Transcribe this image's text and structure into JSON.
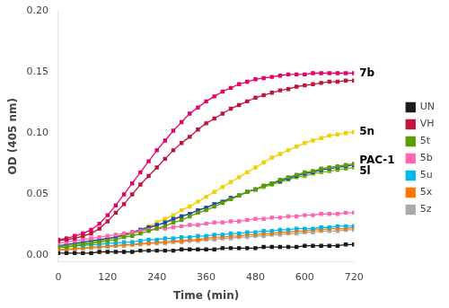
{
  "chart_data": {
    "type": "line",
    "xlabel": "Time (min)",
    "ylabel": "OD (405 nm)",
    "x": [
      0,
      20,
      40,
      60,
      80,
      100,
      120,
      140,
      160,
      180,
      200,
      220,
      240,
      260,
      280,
      300,
      320,
      340,
      360,
      380,
      400,
      420,
      440,
      460,
      480,
      500,
      520,
      540,
      560,
      580,
      600,
      620,
      640,
      660,
      680,
      700,
      720
    ],
    "series": [
      {
        "name": "UN",
        "color": "#1a1a1a",
        "values": [
          0.002,
          0.002,
          0.002,
          0.002,
          0.002,
          0.003,
          0.003,
          0.003,
          0.003,
          0.003,
          0.004,
          0.004,
          0.004,
          0.004,
          0.004,
          0.005,
          0.005,
          0.005,
          0.005,
          0.005,
          0.006,
          0.006,
          0.006,
          0.006,
          0.006,
          0.007,
          0.007,
          0.007,
          0.007,
          0.007,
          0.008,
          0.008,
          0.008,
          0.008,
          0.008,
          0.009,
          0.009
        ]
      },
      {
        "name": "VH",
        "color": "#c0143c",
        "values": [
          0.012,
          0.013,
          0.014,
          0.016,
          0.018,
          0.022,
          0.028,
          0.035,
          0.042,
          0.05,
          0.058,
          0.065,
          0.072,
          0.079,
          0.086,
          0.092,
          0.097,
          0.103,
          0.108,
          0.112,
          0.116,
          0.12,
          0.123,
          0.126,
          0.129,
          0.131,
          0.133,
          0.135,
          0.136,
          0.138,
          0.139,
          0.14,
          0.141,
          0.142,
          0.142,
          0.143,
          0.143
        ]
      },
      {
        "name": "5t",
        "color": "#5a9e00",
        "values": [
          0.007,
          0.007,
          0.008,
          0.009,
          0.01,
          0.011,
          0.012,
          0.013,
          0.015,
          0.016,
          0.018,
          0.02,
          0.022,
          0.024,
          0.027,
          0.029,
          0.032,
          0.035,
          0.037,
          0.04,
          0.043,
          0.046,
          0.049,
          0.052,
          0.054,
          0.057,
          0.059,
          0.062,
          0.064,
          0.066,
          0.068,
          0.069,
          0.071,
          0.072,
          0.073,
          0.074,
          0.075
        ]
      },
      {
        "name": "5b",
        "color": "#ff66b2",
        "values": [
          0.01,
          0.011,
          0.012,
          0.013,
          0.014,
          0.015,
          0.016,
          0.017,
          0.018,
          0.019,
          0.02,
          0.021,
          0.022,
          0.022,
          0.023,
          0.024,
          0.025,
          0.025,
          0.026,
          0.027,
          0.027,
          0.028,
          0.028,
          0.029,
          0.03,
          0.03,
          0.031,
          0.031,
          0.032,
          0.032,
          0.033,
          0.033,
          0.034,
          0.034,
          0.034,
          0.035,
          0.035
        ]
      },
      {
        "name": "5u",
        "color": "#00b7eb",
        "values": [
          0.007,
          0.007,
          0.008,
          0.008,
          0.009,
          0.009,
          0.01,
          0.01,
          0.011,
          0.011,
          0.012,
          0.013,
          0.013,
          0.014,
          0.014,
          0.015,
          0.015,
          0.016,
          0.016,
          0.017,
          0.017,
          0.018,
          0.018,
          0.019,
          0.019,
          0.02,
          0.02,
          0.021,
          0.021,
          0.022,
          0.022,
          0.022,
          0.023,
          0.023,
          0.024,
          0.024,
          0.024
        ]
      },
      {
        "name": "5x",
        "color": "#ff7700",
        "values": [
          0.005,
          0.005,
          0.006,
          0.006,
          0.007,
          0.007,
          0.008,
          0.008,
          0.009,
          0.009,
          0.01,
          0.01,
          0.011,
          0.011,
          0.012,
          0.012,
          0.013,
          0.013,
          0.014,
          0.015,
          0.015,
          0.016,
          0.016,
          0.017,
          0.017,
          0.018,
          0.018,
          0.019,
          0.019,
          0.02,
          0.02,
          0.021,
          0.021,
          0.022,
          0.022,
          0.022,
          0.023
        ]
      },
      {
        "name": "5z",
        "color": "#aaaaaa",
        "values": [
          0.005,
          0.005,
          0.005,
          0.006,
          0.006,
          0.007,
          0.007,
          0.008,
          0.008,
          0.009,
          0.009,
          0.01,
          0.01,
          0.01,
          0.011,
          0.011,
          0.012,
          0.012,
          0.013,
          0.013,
          0.014,
          0.014,
          0.015,
          0.015,
          0.016,
          0.016,
          0.017,
          0.017,
          0.018,
          0.018,
          0.019,
          0.019,
          0.02,
          0.02,
          0.02,
          0.021,
          0.021
        ]
      },
      {
        "name": "PAC-1",
        "color": "#2244bb",
        "values": [
          0.008,
          0.009,
          0.01,
          0.011,
          0.012,
          0.013,
          0.014,
          0.015,
          0.017,
          0.019,
          0.021,
          0.023,
          0.025,
          0.027,
          0.03,
          0.032,
          0.034,
          0.037,
          0.039,
          0.042,
          0.044,
          0.047,
          0.049,
          0.052,
          0.054,
          0.057,
          0.059,
          0.061,
          0.063,
          0.065,
          0.067,
          0.068,
          0.07,
          0.071,
          0.072,
          0.073,
          0.074
        ]
      },
      {
        "name": "5n",
        "color": "#f0d000",
        "values": [
          0.007,
          0.007,
          0.008,
          0.009,
          0.01,
          0.011,
          0.013,
          0.015,
          0.017,
          0.019,
          0.021,
          0.024,
          0.027,
          0.03,
          0.033,
          0.037,
          0.04,
          0.044,
          0.048,
          0.052,
          0.056,
          0.06,
          0.064,
          0.068,
          0.072,
          0.076,
          0.08,
          0.083,
          0.086,
          0.089,
          0.092,
          0.094,
          0.096,
          0.098,
          0.099,
          0.1,
          0.101
        ]
      },
      {
        "name": "5l",
        "color": "#7ab800",
        "values": [
          0.007,
          0.008,
          0.009,
          0.01,
          0.011,
          0.012,
          0.013,
          0.015,
          0.016,
          0.018,
          0.02,
          0.022,
          0.025,
          0.027,
          0.029,
          0.032,
          0.034,
          0.037,
          0.039,
          0.042,
          0.044,
          0.047,
          0.049,
          0.052,
          0.054,
          0.056,
          0.058,
          0.06,
          0.062,
          0.064,
          0.065,
          0.067,
          0.068,
          0.069,
          0.07,
          0.071,
          0.072
        ]
      },
      {
        "name": "7b",
        "color": "#e8006a",
        "values": [
          0.013,
          0.014,
          0.016,
          0.018,
          0.021,
          0.026,
          0.033,
          0.041,
          0.05,
          0.059,
          0.068,
          0.077,
          0.086,
          0.094,
          0.102,
          0.109,
          0.116,
          0.121,
          0.126,
          0.13,
          0.134,
          0.137,
          0.14,
          0.142,
          0.144,
          0.145,
          0.146,
          0.147,
          0.148,
          0.148,
          0.148,
          0.149,
          0.149,
          0.149,
          0.149,
          0.149,
          0.149
        ]
      }
    ],
    "xlim": [
      0,
      720
    ],
    "xticks": [
      0,
      120,
      240,
      360,
      480,
      600,
      720
    ],
    "ylim": [
      -0.005,
      0.2
    ],
    "yticks": [
      {
        "value": 0.0,
        "label": "0.00"
      },
      {
        "value": 0.05,
        "label": "0.05"
      },
      {
        "value": 0.1,
        "label": "0.10"
      },
      {
        "value": 0.15,
        "label": "0.15"
      },
      {
        "value": 0.2,
        "label": "0.20"
      }
    ],
    "annotations": [
      {
        "text": "7b",
        "x": 720,
        "y": 0.149
      },
      {
        "text": "5n",
        "x": 720,
        "y": 0.101
      },
      {
        "text": "PAC-1",
        "x": 720,
        "y": 0.074
      },
      {
        "text": "5l",
        "x": 720,
        "y": 0.072
      }
    ],
    "marker": "square",
    "grid": false,
    "legend": "right"
  }
}
